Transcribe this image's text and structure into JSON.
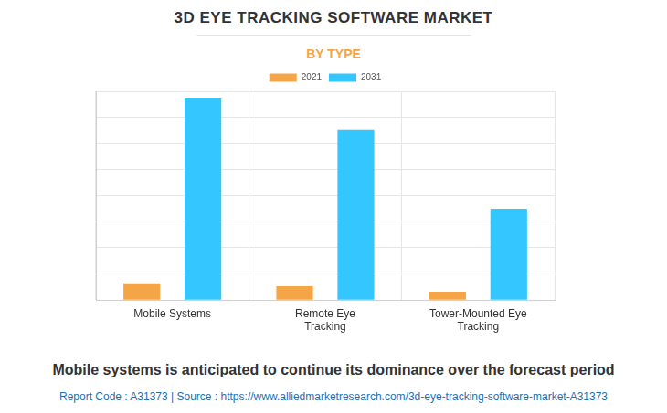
{
  "chart_data": {
    "type": "bar",
    "title": "3D EYE TRACKING SOFTWARE MARKET",
    "subtitle": "BY TYPE",
    "categories": [
      "Mobile Systems",
      "Remote Eye Tracking",
      "Tower-Mounted Eye Tracking"
    ],
    "series": [
      {
        "name": "2021",
        "color": "#f5a546",
        "values": [
          0.64,
          0.53,
          0.32
        ]
      },
      {
        "name": "2031",
        "color": "#33c6ff",
        "values": [
          7.72,
          6.51,
          3.5
        ]
      }
    ],
    "ylim": [
      0,
      8
    ],
    "yticks": [
      0,
      1,
      2,
      3,
      4,
      5,
      6,
      7,
      8
    ],
    "grid": true,
    "tick_labels": "x",
    "legend": "top",
    "caption": "Mobile systems is anticipated to continue its dominance over the forecast period",
    "source": "Report Code : A31373  |  Source : https://www.alliedmarketresearch.com/3d-eye-tracking-software-market-A31373"
  }
}
